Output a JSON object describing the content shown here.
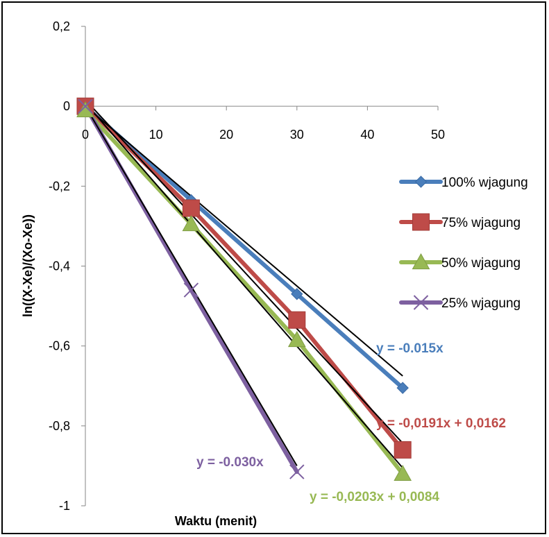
{
  "chart_data": {
    "type": "scatter",
    "title": "",
    "xlabel": "Waktu (menit)",
    "ylabel": "ln((X-Xe)/(Xo-Xe))",
    "xlim": [
      0,
      50
    ],
    "ylim": [
      -1,
      0.2
    ],
    "x_ticks": [
      "0",
      "10",
      "20",
      "30",
      "40",
      "50"
    ],
    "y_ticks": [
      "0,2",
      "0",
      "-0,2",
      "-0,4",
      "-0,6",
      "-0,8",
      "-1"
    ],
    "grid": false,
    "legend_position": "right",
    "series": [
      {
        "name": "100% wjagung",
        "color": "#4a7ebb",
        "marker": "diamond",
        "x": [
          0,
          15,
          30,
          45
        ],
        "y": [
          0,
          -0.235,
          -0.47,
          -0.705
        ],
        "trendline": {
          "slope": -0.015,
          "intercept": 0,
          "x_range": [
            0,
            45
          ]
        },
        "equation": "y = -0.015x"
      },
      {
        "name": "75% wjagung",
        "color": "#be4b48",
        "marker": "square",
        "x": [
          0,
          15,
          30,
          45
        ],
        "y": [
          0,
          -0.255,
          -0.535,
          -0.86
        ],
        "trendline": {
          "slope": -0.0191,
          "intercept": 0.0162,
          "x_range": [
            0,
            45
          ]
        },
        "equation": "y = -0,0191x + 0,0162"
      },
      {
        "name": "50% wjagung",
        "color": "#98b954",
        "marker": "triangle",
        "x": [
          0,
          15,
          30,
          45
        ],
        "y": [
          -0.01,
          -0.295,
          -0.585,
          -0.92
        ],
        "trendline": {
          "slope": -0.0203,
          "intercept": 0.0084,
          "x_range": [
            0,
            45
          ]
        },
        "equation": "y = -0,0203x + 0,0084"
      },
      {
        "name": "25% wjagung",
        "color": "#7d60a0",
        "marker": "x",
        "x": [
          0,
          15,
          30
        ],
        "y": [
          0,
          -0.46,
          -0.915
        ],
        "trendline": {
          "slope": -0.03,
          "intercept": 0,
          "x_range": [
            0,
            30
          ]
        },
        "equation": "y = -0.030x"
      }
    ]
  }
}
